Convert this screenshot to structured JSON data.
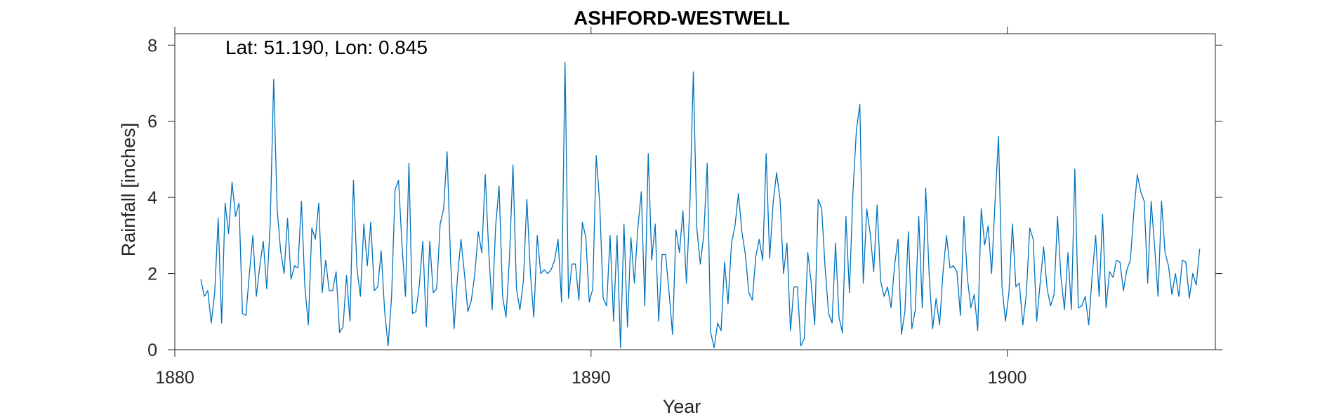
{
  "chart_data": {
    "type": "line",
    "title": "ASHFORD-WESTWELL",
    "annotation": "Lat: 51.190, Lon: 0.845",
    "xlabel": "Year",
    "ylabel": "Rainfall [inches]",
    "xlim": [
      1880,
      1905
    ],
    "ylim": [
      0,
      8.3
    ],
    "x_ticks": [
      1880,
      1890,
      1900
    ],
    "x_tick_labels": [
      "1880",
      "1890",
      "1900"
    ],
    "y_ticks": [
      0,
      2,
      4,
      6,
      8
    ],
    "y_tick_labels": [
      "0",
      "2",
      "4",
      "6",
      "8"
    ],
    "x_start": 1880.625,
    "x_step": 0.08333,
    "grid": false,
    "series": [
      {
        "color": "#0072BD",
        "values": [
          1.85,
          1.4,
          1.55,
          0.7,
          1.5,
          3.45,
          0.7,
          3.85,
          3.05,
          4.4,
          3.5,
          3.85,
          0.95,
          0.9,
          2.0,
          3.0,
          1.4,
          2.2,
          2.85,
          1.6,
          3.3,
          7.1,
          3.7,
          2.6,
          2.0,
          3.45,
          1.85,
          2.2,
          2.15,
          3.9,
          1.65,
          0.65,
          3.2,
          2.9,
          3.85,
          1.5,
          2.35,
          1.55,
          1.55,
          2.05,
          0.45,
          0.6,
          1.95,
          0.75,
          4.45,
          2.15,
          1.4,
          3.3,
          2.2,
          3.35,
          1.55,
          1.65,
          2.6,
          1.0,
          0.1,
          1.4,
          4.2,
          4.45,
          2.75,
          1.4,
          4.9,
          0.95,
          1.0,
          1.7,
          2.85,
          0.6,
          2.85,
          1.5,
          1.6,
          3.3,
          3.7,
          5.2,
          2.35,
          0.55,
          1.9,
          2.9,
          2.0,
          1.0,
          1.3,
          2.0,
          3.1,
          2.55,
          4.6,
          2.6,
          1.05,
          3.25,
          4.3,
          1.4,
          0.85,
          2.45,
          4.85,
          1.6,
          1.05,
          1.8,
          3.95,
          2.05,
          0.85,
          3.0,
          2.0,
          2.1,
          2.0,
          2.1,
          2.35,
          2.9,
          1.25,
          7.55,
          1.35,
          2.25,
          2.25,
          1.3,
          3.35,
          2.95,
          1.25,
          1.6,
          5.1,
          3.85,
          1.35,
          1.15,
          3.0,
          0.75,
          3.0,
          0.05,
          3.3,
          0.6,
          2.95,
          1.75,
          3.2,
          4.15,
          1.15,
          5.15,
          2.35,
          3.3,
          0.75,
          2.5,
          2.5,
          1.5,
          0.4,
          3.15,
          2.55,
          3.65,
          1.75,
          3.8,
          7.3,
          3.2,
          2.25,
          3.0,
          4.9,
          0.45,
          0.05,
          0.7,
          0.5,
          2.3,
          1.2,
          2.8,
          3.25,
          4.1,
          3.1,
          2.5,
          1.5,
          1.3,
          2.45,
          2.9,
          2.35,
          5.15,
          2.4,
          3.85,
          4.65,
          3.95,
          2.0,
          2.8,
          0.5,
          1.65,
          1.65,
          0.1,
          0.3,
          2.55,
          1.75,
          0.65,
          3.95,
          3.7,
          2.15,
          0.95,
          0.7,
          2.8,
          0.85,
          0.45,
          3.5,
          1.5,
          4.1,
          5.75,
          6.45,
          1.75,
          3.7,
          3.05,
          2.05,
          3.8,
          1.8,
          1.4,
          1.65,
          1.1,
          2.2,
          2.9,
          0.4,
          1.0,
          3.1,
          0.55,
          1.05,
          3.5,
          1.1,
          4.25,
          1.95,
          0.55,
          1.35,
          0.65,
          2.05,
          3.0,
          2.15,
          2.2,
          2.05,
          0.9,
          3.5,
          1.9,
          1.1,
          1.45,
          0.5,
          3.7,
          2.75,
          3.25,
          2.0,
          3.9,
          5.6,
          1.65,
          0.75,
          1.5,
          3.3,
          1.65,
          1.75,
          0.65,
          1.45,
          3.2,
          2.9,
          0.75,
          1.75,
          2.7,
          1.6,
          1.15,
          1.45,
          3.5,
          1.9,
          1.05,
          2.55,
          1.05,
          4.75,
          1.1,
          1.15,
          1.4,
          0.65,
          1.95,
          3.0,
          1.4,
          3.55,
          1.1,
          2.05,
          1.9,
          2.35,
          2.3,
          1.55,
          2.1,
          2.35,
          3.6,
          4.6,
          4.15,
          3.9,
          1.75,
          3.9,
          2.7,
          1.4,
          3.9,
          2.55,
          2.2,
          1.45,
          2.0,
          1.4,
          2.35,
          2.3,
          1.35,
          2.0,
          1.7,
          2.65
        ]
      }
    ]
  }
}
